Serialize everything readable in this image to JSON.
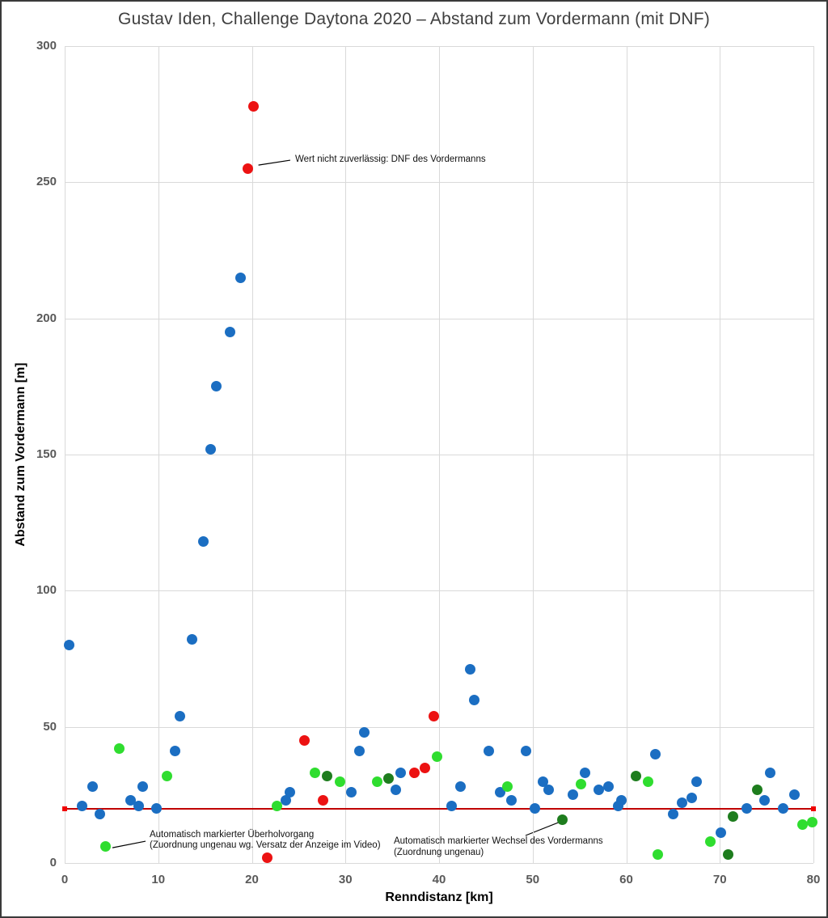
{
  "chart_data": {
    "type": "scatter",
    "title": "Gustav Iden, Challenge Daytona 2020 – Abstand zum Vordermann (mit DNF)",
    "xlabel": "Renndistanz [km]",
    "ylabel": "Abstand zum Vordermann [m]",
    "xlim": [
      0,
      80
    ],
    "ylim": [
      0,
      300
    ],
    "x_ticks": [
      0,
      10,
      20,
      30,
      40,
      50,
      60,
      70,
      80
    ],
    "y_ticks": [
      0,
      50,
      100,
      150,
      200,
      250,
      300
    ],
    "grid": true,
    "legend": "none",
    "series": [
      {
        "id": "abstand",
        "name": "Abstand zum Vordermann",
        "color": "#1b6ec2",
        "points": [
          [
            0.5,
            80
          ],
          [
            1.9,
            21
          ],
          [
            3.0,
            28
          ],
          [
            3.8,
            18
          ],
          [
            7.0,
            23
          ],
          [
            7.9,
            21
          ],
          [
            8.3,
            28
          ],
          [
            9.8,
            20
          ],
          [
            11.8,
            41
          ],
          [
            12.3,
            54
          ],
          [
            13.6,
            82
          ],
          [
            14.8,
            118
          ],
          [
            15.6,
            152
          ],
          [
            16.2,
            175
          ],
          [
            17.7,
            195
          ],
          [
            18.8,
            215
          ],
          [
            23.6,
            23
          ],
          [
            24.1,
            26
          ],
          [
            30.6,
            26
          ],
          [
            31.5,
            41
          ],
          [
            32.0,
            48
          ],
          [
            35.4,
            27
          ],
          [
            35.9,
            33
          ],
          [
            41.3,
            21
          ],
          [
            42.3,
            28
          ],
          [
            43.3,
            71
          ],
          [
            43.8,
            60
          ],
          [
            45.3,
            41
          ],
          [
            46.5,
            26
          ],
          [
            47.7,
            23
          ],
          [
            49.3,
            41
          ],
          [
            50.2,
            20
          ],
          [
            51.1,
            30
          ],
          [
            51.7,
            27
          ],
          [
            54.3,
            25
          ],
          [
            55.6,
            33
          ],
          [
            57.1,
            27
          ],
          [
            58.1,
            28
          ],
          [
            59.1,
            21
          ],
          [
            59.5,
            23
          ],
          [
            63.1,
            40
          ],
          [
            65.0,
            18
          ],
          [
            66.0,
            22
          ],
          [
            67.0,
            24
          ],
          [
            67.5,
            30
          ],
          [
            70.1,
            11
          ],
          [
            72.9,
            20
          ],
          [
            74.8,
            23
          ],
          [
            75.4,
            33
          ],
          [
            76.8,
            20
          ],
          [
            78.0,
            25
          ]
        ]
      },
      {
        "id": "ueberholvorgang",
        "name": "Automatisch markierter Überholvorgang",
        "color": "#2fdd2f",
        "points": [
          [
            4.4,
            6
          ],
          [
            5.8,
            42
          ],
          [
            10.9,
            32
          ],
          [
            22.7,
            21
          ],
          [
            26.7,
            33
          ],
          [
            29.4,
            30
          ],
          [
            33.4,
            30
          ],
          [
            39.8,
            39
          ],
          [
            47.3,
            28
          ],
          [
            55.2,
            29
          ],
          [
            62.3,
            30
          ],
          [
            63.4,
            3
          ],
          [
            69.0,
            8
          ],
          [
            78.8,
            14
          ],
          [
            79.9,
            15
          ]
        ]
      },
      {
        "id": "wechsel-vordermann",
        "name": "Automatisch markierter Wechsel des Vordermanns",
        "color": "#1e7d1e",
        "points": [
          [
            28.0,
            32
          ],
          [
            34.6,
            31
          ],
          [
            53.2,
            16
          ],
          [
            61.0,
            32
          ],
          [
            70.9,
            3
          ],
          [
            71.4,
            17
          ],
          [
            74.0,
            27
          ]
        ]
      },
      {
        "id": "dnf",
        "name": "Wert nicht zuverlässig: DNF des Vordermanns",
        "color": "#ec1212",
        "points": [
          [
            19.6,
            255
          ],
          [
            20.2,
            278
          ],
          [
            21.6,
            2
          ],
          [
            25.6,
            45
          ],
          [
            27.6,
            23
          ],
          [
            37.4,
            33
          ],
          [
            38.5,
            35
          ],
          [
            39.4,
            54
          ]
        ]
      }
    ],
    "reference_line": {
      "y": 20,
      "x1": 0,
      "x2": 80,
      "color": "#c00000"
    },
    "annotations": [
      {
        "lines": [
          "Wert nicht zuverlässig: DNF des Vordermanns"
        ],
        "text_x": 24.62,
        "text_y": 260.2,
        "leader": [
          24.1,
          258.1,
          20.7,
          256.3
        ]
      },
      {
        "lines": [
          "Automatisch markierter Überholvorgang",
          "(Zuordnung ungenau wg. Versatz der Anzeige im Video)"
        ],
        "text_x": 9.07,
        "text_y": 12.2,
        "leader": [
          8.64,
          8.0,
          5.1,
          5.6
        ]
      },
      {
        "lines": [
          "Automatisch markierter Wechsel des Vordermanns",
          "(Zuordnung ungenau)"
        ],
        "text_x": 35.16,
        "text_y": 9.8,
        "leader": [
          49.24,
          10.1,
          52.96,
          15.15
        ]
      }
    ]
  }
}
